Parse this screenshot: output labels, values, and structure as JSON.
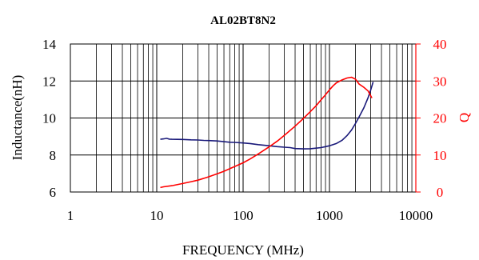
{
  "chart_data": {
    "type": "line",
    "title": "AL02BT8N2",
    "xlabel": "FREQUENCY (MHz)",
    "ylabel": "Inductance(nH)",
    "y2label": "Q",
    "x_scale": "log",
    "xlim": [
      1,
      10000
    ],
    "ylim": [
      6,
      14
    ],
    "y2lim": [
      0,
      40
    ],
    "x_ticks": [
      1,
      10,
      100,
      1000,
      10000
    ],
    "x_tick_labels": [
      "1",
      "10",
      "100",
      "1000",
      "10000"
    ],
    "y_ticks": [
      6,
      8,
      10,
      12,
      14
    ],
    "y_tick_labels": [
      "6",
      "8",
      "10",
      "12",
      "14"
    ],
    "y2_ticks": [
      0,
      10,
      20,
      30,
      40
    ],
    "y2_tick_labels": [
      "0",
      "10",
      "20",
      "30",
      "40"
    ],
    "grid": "log-x minor and major vertical, horizontal at y ticks",
    "legend": "none",
    "colors": {
      "inductance": "#1a1a7a",
      "q": "#ff0000",
      "axis_left": "#000000",
      "axis_right": "#ff0000"
    },
    "series": [
      {
        "axis": "left",
        "values_xy": [
          [
            11,
            8.85
          ],
          [
            12,
            8.87
          ],
          [
            13,
            8.9
          ],
          [
            14,
            8.86
          ],
          [
            15,
            8.85
          ],
          [
            20,
            8.84
          ],
          [
            25,
            8.82
          ],
          [
            30,
            8.81
          ],
          [
            35,
            8.79
          ],
          [
            40,
            8.78
          ],
          [
            50,
            8.76
          ],
          [
            60,
            8.72
          ],
          [
            70,
            8.69
          ],
          [
            80,
            8.68
          ],
          [
            100,
            8.65
          ],
          [
            120,
            8.62
          ],
          [
            150,
            8.56
          ],
          [
            200,
            8.5
          ],
          [
            250,
            8.45
          ],
          [
            300,
            8.42
          ],
          [
            350,
            8.4
          ],
          [
            400,
            8.35
          ],
          [
            500,
            8.33
          ],
          [
            600,
            8.34
          ],
          [
            700,
            8.37
          ],
          [
            800,
            8.4
          ],
          [
            900,
            8.45
          ],
          [
            1000,
            8.5
          ],
          [
            1200,
            8.62
          ],
          [
            1400,
            8.8
          ],
          [
            1600,
            9.05
          ],
          [
            1800,
            9.35
          ],
          [
            2000,
            9.7
          ],
          [
            2200,
            10.05
          ],
          [
            2500,
            10.55
          ],
          [
            2800,
            11.1
          ],
          [
            3000,
            11.5
          ],
          [
            3200,
            11.95
          ]
        ]
      },
      {
        "axis": "right",
        "values_xy": [
          [
            11,
            1.2
          ],
          [
            12,
            1.4
          ],
          [
            15,
            1.7
          ],
          [
            20,
            2.3
          ],
          [
            25,
            2.8
          ],
          [
            30,
            3.2
          ],
          [
            40,
            4.1
          ],
          [
            50,
            4.9
          ],
          [
            60,
            5.6
          ],
          [
            70,
            6.3
          ],
          [
            80,
            6.9
          ],
          [
            100,
            7.9
          ],
          [
            120,
            8.9
          ],
          [
            150,
            10.3
          ],
          [
            200,
            12.2
          ],
          [
            250,
            13.8
          ],
          [
            300,
            15.3
          ],
          [
            400,
            17.8
          ],
          [
            500,
            19.9
          ],
          [
            600,
            21.7
          ],
          [
            700,
            23.3
          ],
          [
            800,
            24.9
          ],
          [
            900,
            26.3
          ],
          [
            1000,
            27.6
          ],
          [
            1100,
            28.7
          ],
          [
            1200,
            29.5
          ],
          [
            1400,
            30.3
          ],
          [
            1600,
            30.8
          ],
          [
            1800,
            31.0
          ],
          [
            2000,
            30.5
          ],
          [
            2200,
            29.2
          ],
          [
            2500,
            28.3
          ],
          [
            2800,
            27.3
          ],
          [
            3100,
            25.4
          ]
        ]
      }
    ]
  }
}
